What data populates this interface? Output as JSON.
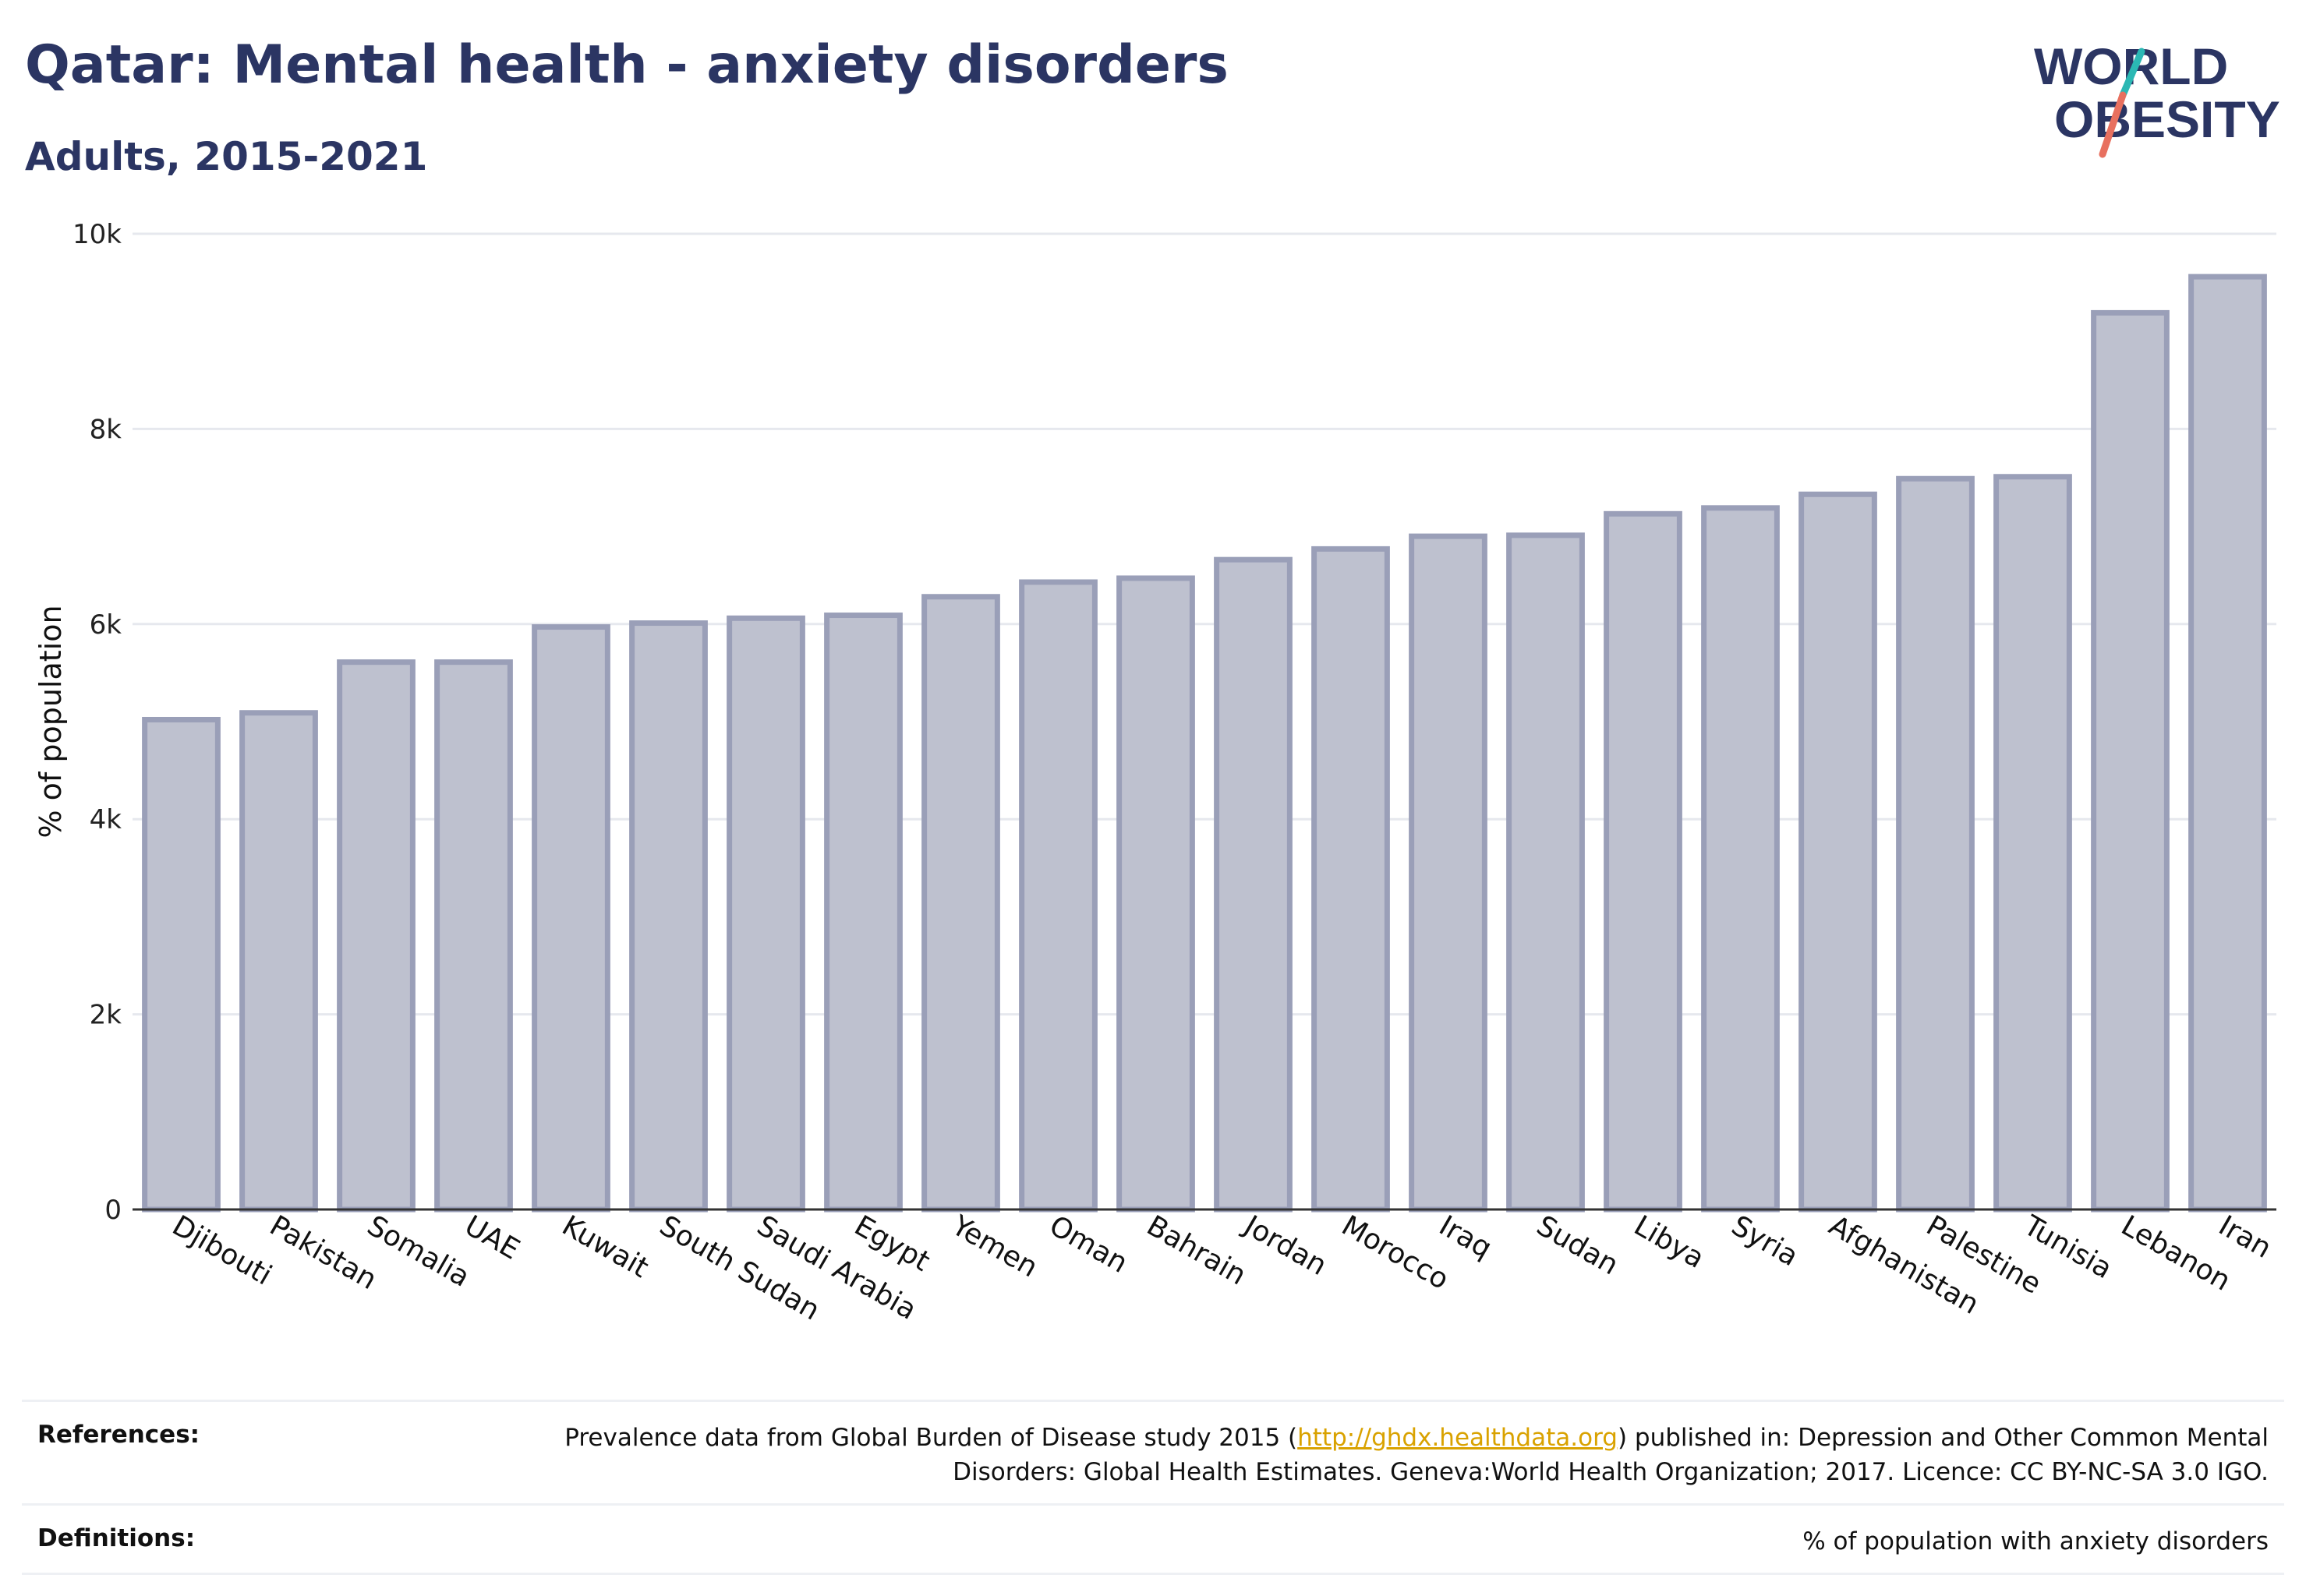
{
  "header": {
    "title": "Qatar: Mental health - anxiety disorders",
    "subtitle": "Adults, 2015-2021"
  },
  "logo": {
    "line1": "WORLD",
    "line2": "OBESITY",
    "colors": {
      "text": "#2b3563",
      "slash_top": "#2bb8b4",
      "slash_bottom": "#e8705f"
    }
  },
  "colors": {
    "bar_fill": "#bec1cf",
    "bar_stroke": "#9a9fb8",
    "grid": "#e6e8ee",
    "axis": "#333333",
    "title": "#2b3563",
    "link": "#d9a200"
  },
  "chart_data": {
    "type": "bar",
    "title": "Qatar: Mental health - anxiety disorders",
    "subtitle": "Adults, 2015-2021",
    "xlabel": "",
    "ylabel": "% of population",
    "ylim": [
      0,
      10000
    ],
    "yticks": [
      0,
      2000,
      4000,
      6000,
      8000,
      10000
    ],
    "ytick_labels": [
      "0",
      "2k",
      "4k",
      "6k",
      "8k",
      "10k"
    ],
    "grid": true,
    "legend": "none",
    "categories": [
      "Djibouti",
      "Pakistan",
      "Somalia",
      "UAE",
      "Kuwait",
      "South Sudan",
      "Saudi Arabia",
      "Egypt",
      "Yemen",
      "Oman",
      "Bahrain",
      "Jordan",
      "Morocco",
      "Iraq",
      "Sudan",
      "Libya",
      "Syria",
      "Afghanistan",
      "Palestine",
      "Tunisia",
      "Lebanon",
      "Iran"
    ],
    "values": [
      5020,
      5090,
      5610,
      5610,
      5970,
      6010,
      6060,
      6090,
      6280,
      6430,
      6470,
      6660,
      6770,
      6900,
      6910,
      7130,
      7190,
      7330,
      7490,
      7510,
      9190,
      9560
    ]
  },
  "references": {
    "label": "References:",
    "text_before": "Prevalence data from Global Burden of Disease study 2015 (",
    "link": "http://ghdx.healthdata.org",
    "text_after": ") published in: Depression and Other Common Mental Disorders: Global Health Estimates. Geneva:World Health Organization; 2017. Licence: CC BY-NC-SA 3.0 IGO."
  },
  "definitions": {
    "label": "Definitions:",
    "text": "% of population with anxiety disorders"
  }
}
